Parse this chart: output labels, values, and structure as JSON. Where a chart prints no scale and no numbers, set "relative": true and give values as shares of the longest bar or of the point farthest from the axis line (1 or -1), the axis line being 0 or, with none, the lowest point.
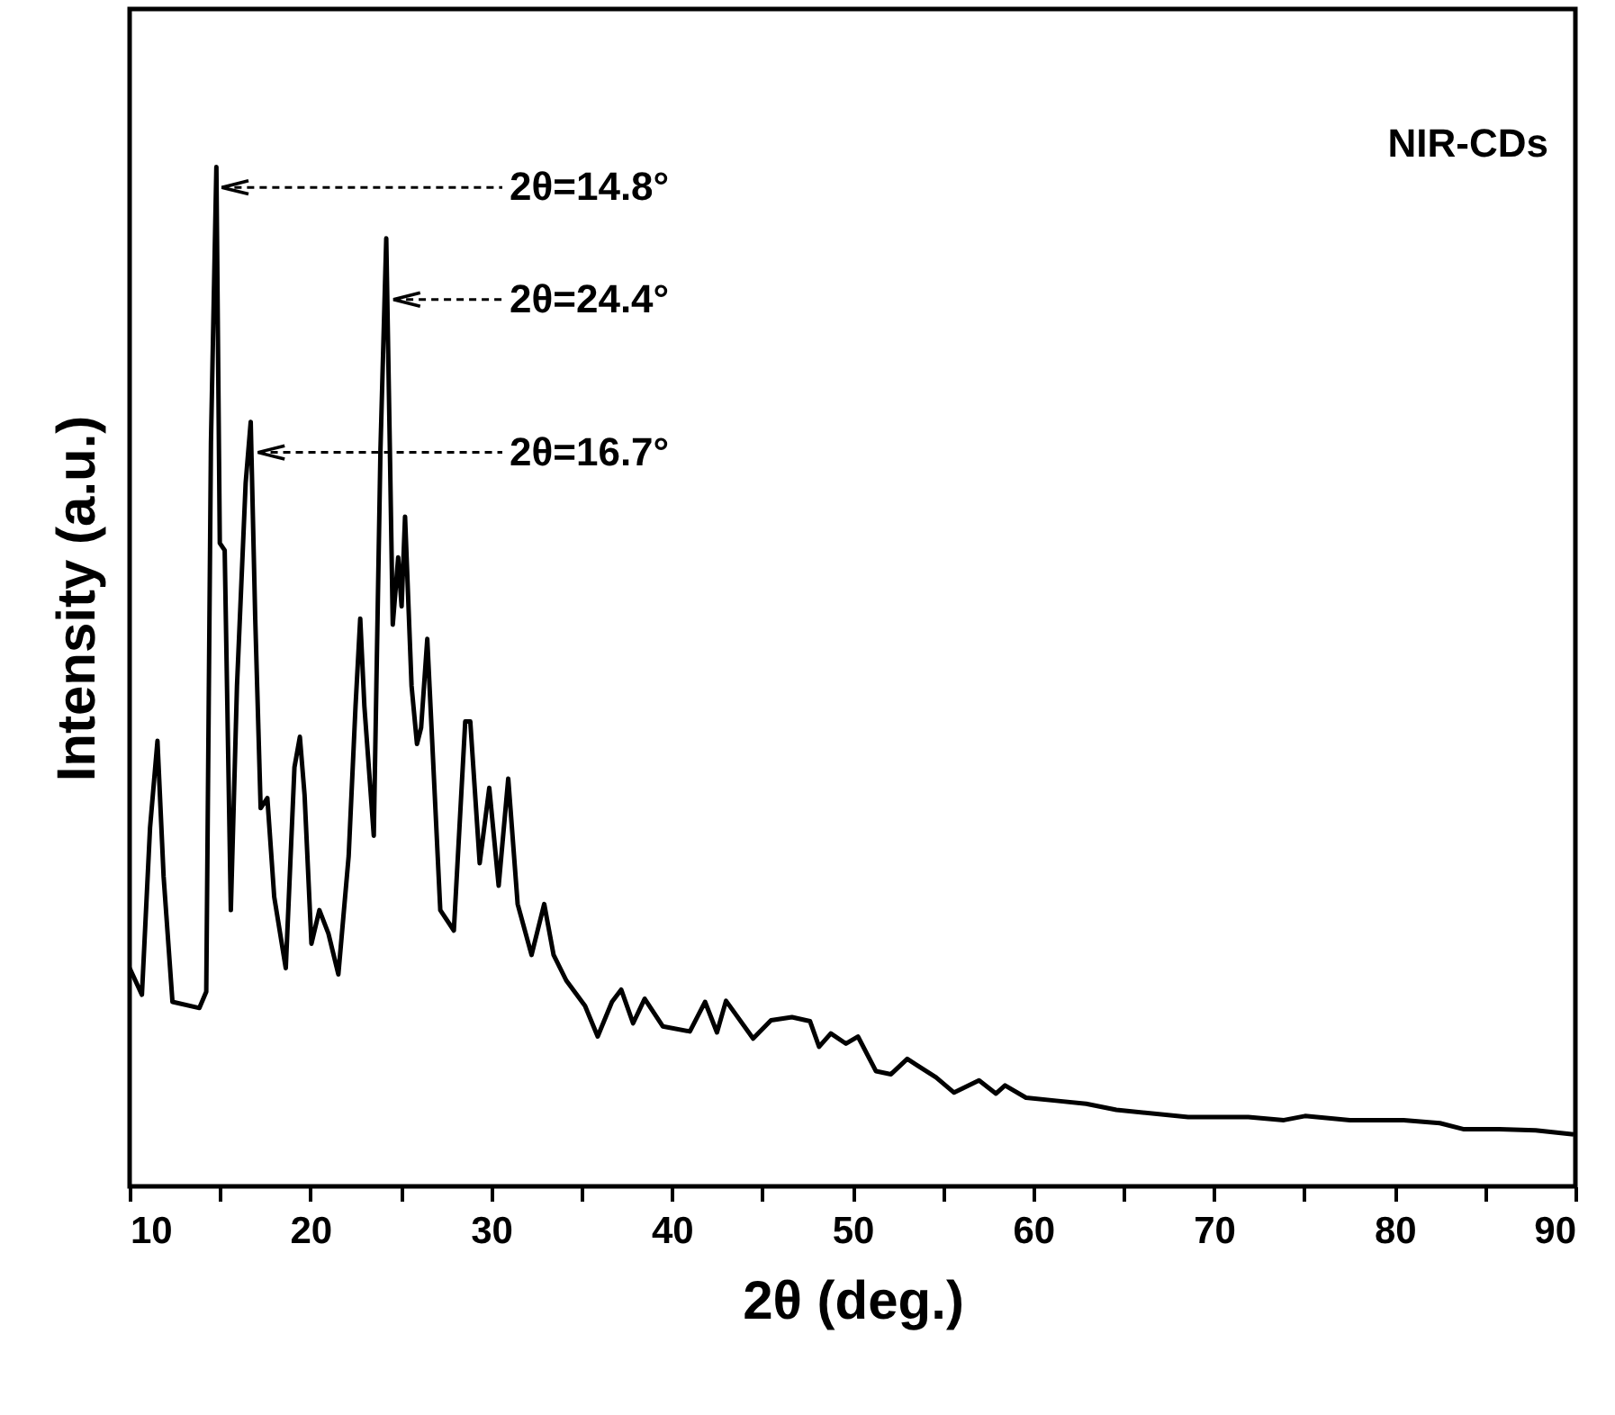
{
  "chart_data": {
    "type": "line",
    "relative": true,
    "xlabel": "2θ (deg.)",
    "ylabel": "Intensity (a.u.)",
    "xlim": [
      10,
      90
    ],
    "xticks": [
      10,
      {
        "value": 15,
        "label": null
      },
      20,
      {
        "value": 25,
        "label": null
      },
      30,
      {
        "value": 35,
        "label": null
      },
      40,
      {
        "value": 45,
        "label": null
      },
      50,
      {
        "value": 55,
        "label": null
      },
      60,
      {
        "value": 65,
        "label": null
      },
      70,
      {
        "value": 75,
        "label": null
      },
      80,
      {
        "value": 85,
        "label": null
      },
      90
    ],
    "annotations": [
      "NIR-CDs",
      {
        "text": "2θ=14.8°",
        "x": 15.1,
        "y": 0.98
      },
      {
        "text": "2θ=24.4°",
        "x": 24.6,
        "y": 0.87
      },
      {
        "text": "2θ=16.7°",
        "x": 17.1,
        "y": 0.72
      }
    ],
    "x": [
      10,
      10.68,
      11.13,
      11.54,
      11.88,
      12.37,
      13.86,
      14.24,
      14.5,
      14.8,
      14.99,
      15.26,
      15.6,
      15.94,
      16.42,
      16.7,
      16.95,
      17.25,
      17.62,
      18.0,
      18.64,
      19.12,
      19.42,
      19.68,
      20.06,
      20.5,
      21.0,
      21.55,
      22.12,
      22.5,
      22.76,
      22.99,
      23.51,
      23.88,
      24.2,
      24.4,
      24.56,
      24.86,
      25.05,
      25.24,
      25.6,
      25.9,
      26.13,
      26.47,
      27.19,
      27.94,
      28.57,
      28.85,
      29.37,
      29.9,
      30.42,
      30.95,
      31.47,
      32.24,
      32.94,
      33.46,
      34.16,
      35.2,
      35.9,
      36.69,
      37.2,
      37.86,
      38.5,
      39.5,
      41.0,
      41.84,
      42.5,
      43.0,
      44.5,
      45.49,
      46.65,
      47.65,
      48.15,
      48.8,
      49.64,
      50.3,
      51.3,
      52.13,
      53.03,
      54.62,
      55.62,
      57.0,
      57.94,
      58.44,
      59.6,
      61.27,
      62.93,
      64.6,
      68.57,
      71.9,
      73.87,
      75.04,
      77.53,
      80.5,
      82.5,
      83.84,
      85.8,
      87.8,
      89.9
    ],
    "series": [
      {
        "color": "#000000",
        "values": [
          0.214,
          0.188,
          0.352,
          0.437,
          0.304,
          0.181,
          0.175,
          0.191,
          0.73,
          1.0,
          0.631,
          0.624,
          0.271,
          0.491,
          0.69,
          0.75,
          0.557,
          0.371,
          0.381,
          0.284,
          0.214,
          0.411,
          0.441,
          0.384,
          0.238,
          0.271,
          0.248,
          0.208,
          0.324,
          0.471,
          0.557,
          0.471,
          0.344,
          0.723,
          0.93,
          0.723,
          0.551,
          0.617,
          0.569,
          0.657,
          0.491,
          0.434,
          0.45,
          0.537,
          0.271,
          0.251,
          0.456,
          0.456,
          0.317,
          0.391,
          0.295,
          0.4,
          0.277,
          0.227,
          0.277,
          0.227,
          0.202,
          0.177,
          0.147,
          0.181,
          0.193,
          0.16,
          0.184,
          0.157,
          0.152,
          0.181,
          0.151,
          0.182,
          0.145,
          0.163,
          0.166,
          0.162,
          0.137,
          0.15,
          0.14,
          0.147,
          0.113,
          0.11,
          0.125,
          0.107,
          0.092,
          0.104,
          0.091,
          0.099,
          0.087,
          0.084,
          0.081,
          0.075,
          0.068,
          0.068,
          0.065,
          0.069,
          0.065,
          0.065,
          0.062,
          0.056,
          0.056,
          0.055,
          0.051
        ]
      }
    ]
  }
}
